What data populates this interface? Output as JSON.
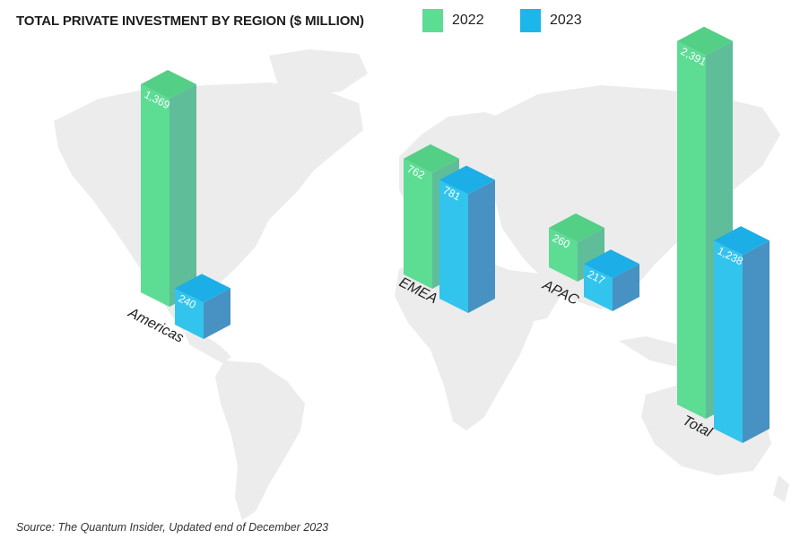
{
  "title": "TOTAL PRIVATE INVESTMENT BY REGION ($ MILLION)",
  "legend": [
    {
      "label": "2022",
      "color": "#5ddc94"
    },
    {
      "label": "2023",
      "color": "#1db6ea"
    }
  ],
  "source": "Source: The Quantum Insider, Updated end of December 2023",
  "colors": {
    "map_land": "#ececec",
    "green_front": "#5ddc94",
    "green_side": "#5fbd99",
    "green_top": "#54cf86",
    "blue_front": "#33c4ee",
    "blue_side": "#4792c3",
    "blue_top": "#1caee6"
  },
  "chart_data": {
    "type": "bar",
    "categories": [
      "Americas",
      "EMEA",
      "APAC",
      "Total"
    ],
    "series": [
      {
        "name": "2022",
        "values": [
          1369,
          762,
          260,
          2391
        ],
        "labels": [
          "1,369",
          "762",
          "260",
          "2,391"
        ]
      },
      {
        "name": "2023",
        "values": [
          240,
          781,
          217,
          1238
        ],
        "labels": [
          "240",
          "781",
          "217",
          "1,238"
        ]
      }
    ]
  }
}
